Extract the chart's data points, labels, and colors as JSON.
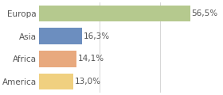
{
  "categories": [
    "Europa",
    "Asia",
    "Africa",
    "America"
  ],
  "values": [
    56.5,
    16.3,
    14.1,
    13.0
  ],
  "labels": [
    "56,5%",
    "16,3%",
    "14,1%",
    "13,0%"
  ],
  "colors": [
    "#b5c98e",
    "#6c8ebf",
    "#e8a97e",
    "#f0d080"
  ],
  "xlim": [
    0,
    68
  ],
  "background_color": "#ffffff",
  "bar_height": 0.72,
  "label_fontsize": 7.5,
  "tick_fontsize": 7.5,
  "grid_lines": [
    22.7,
    45.3
  ],
  "text_color": "#555555"
}
